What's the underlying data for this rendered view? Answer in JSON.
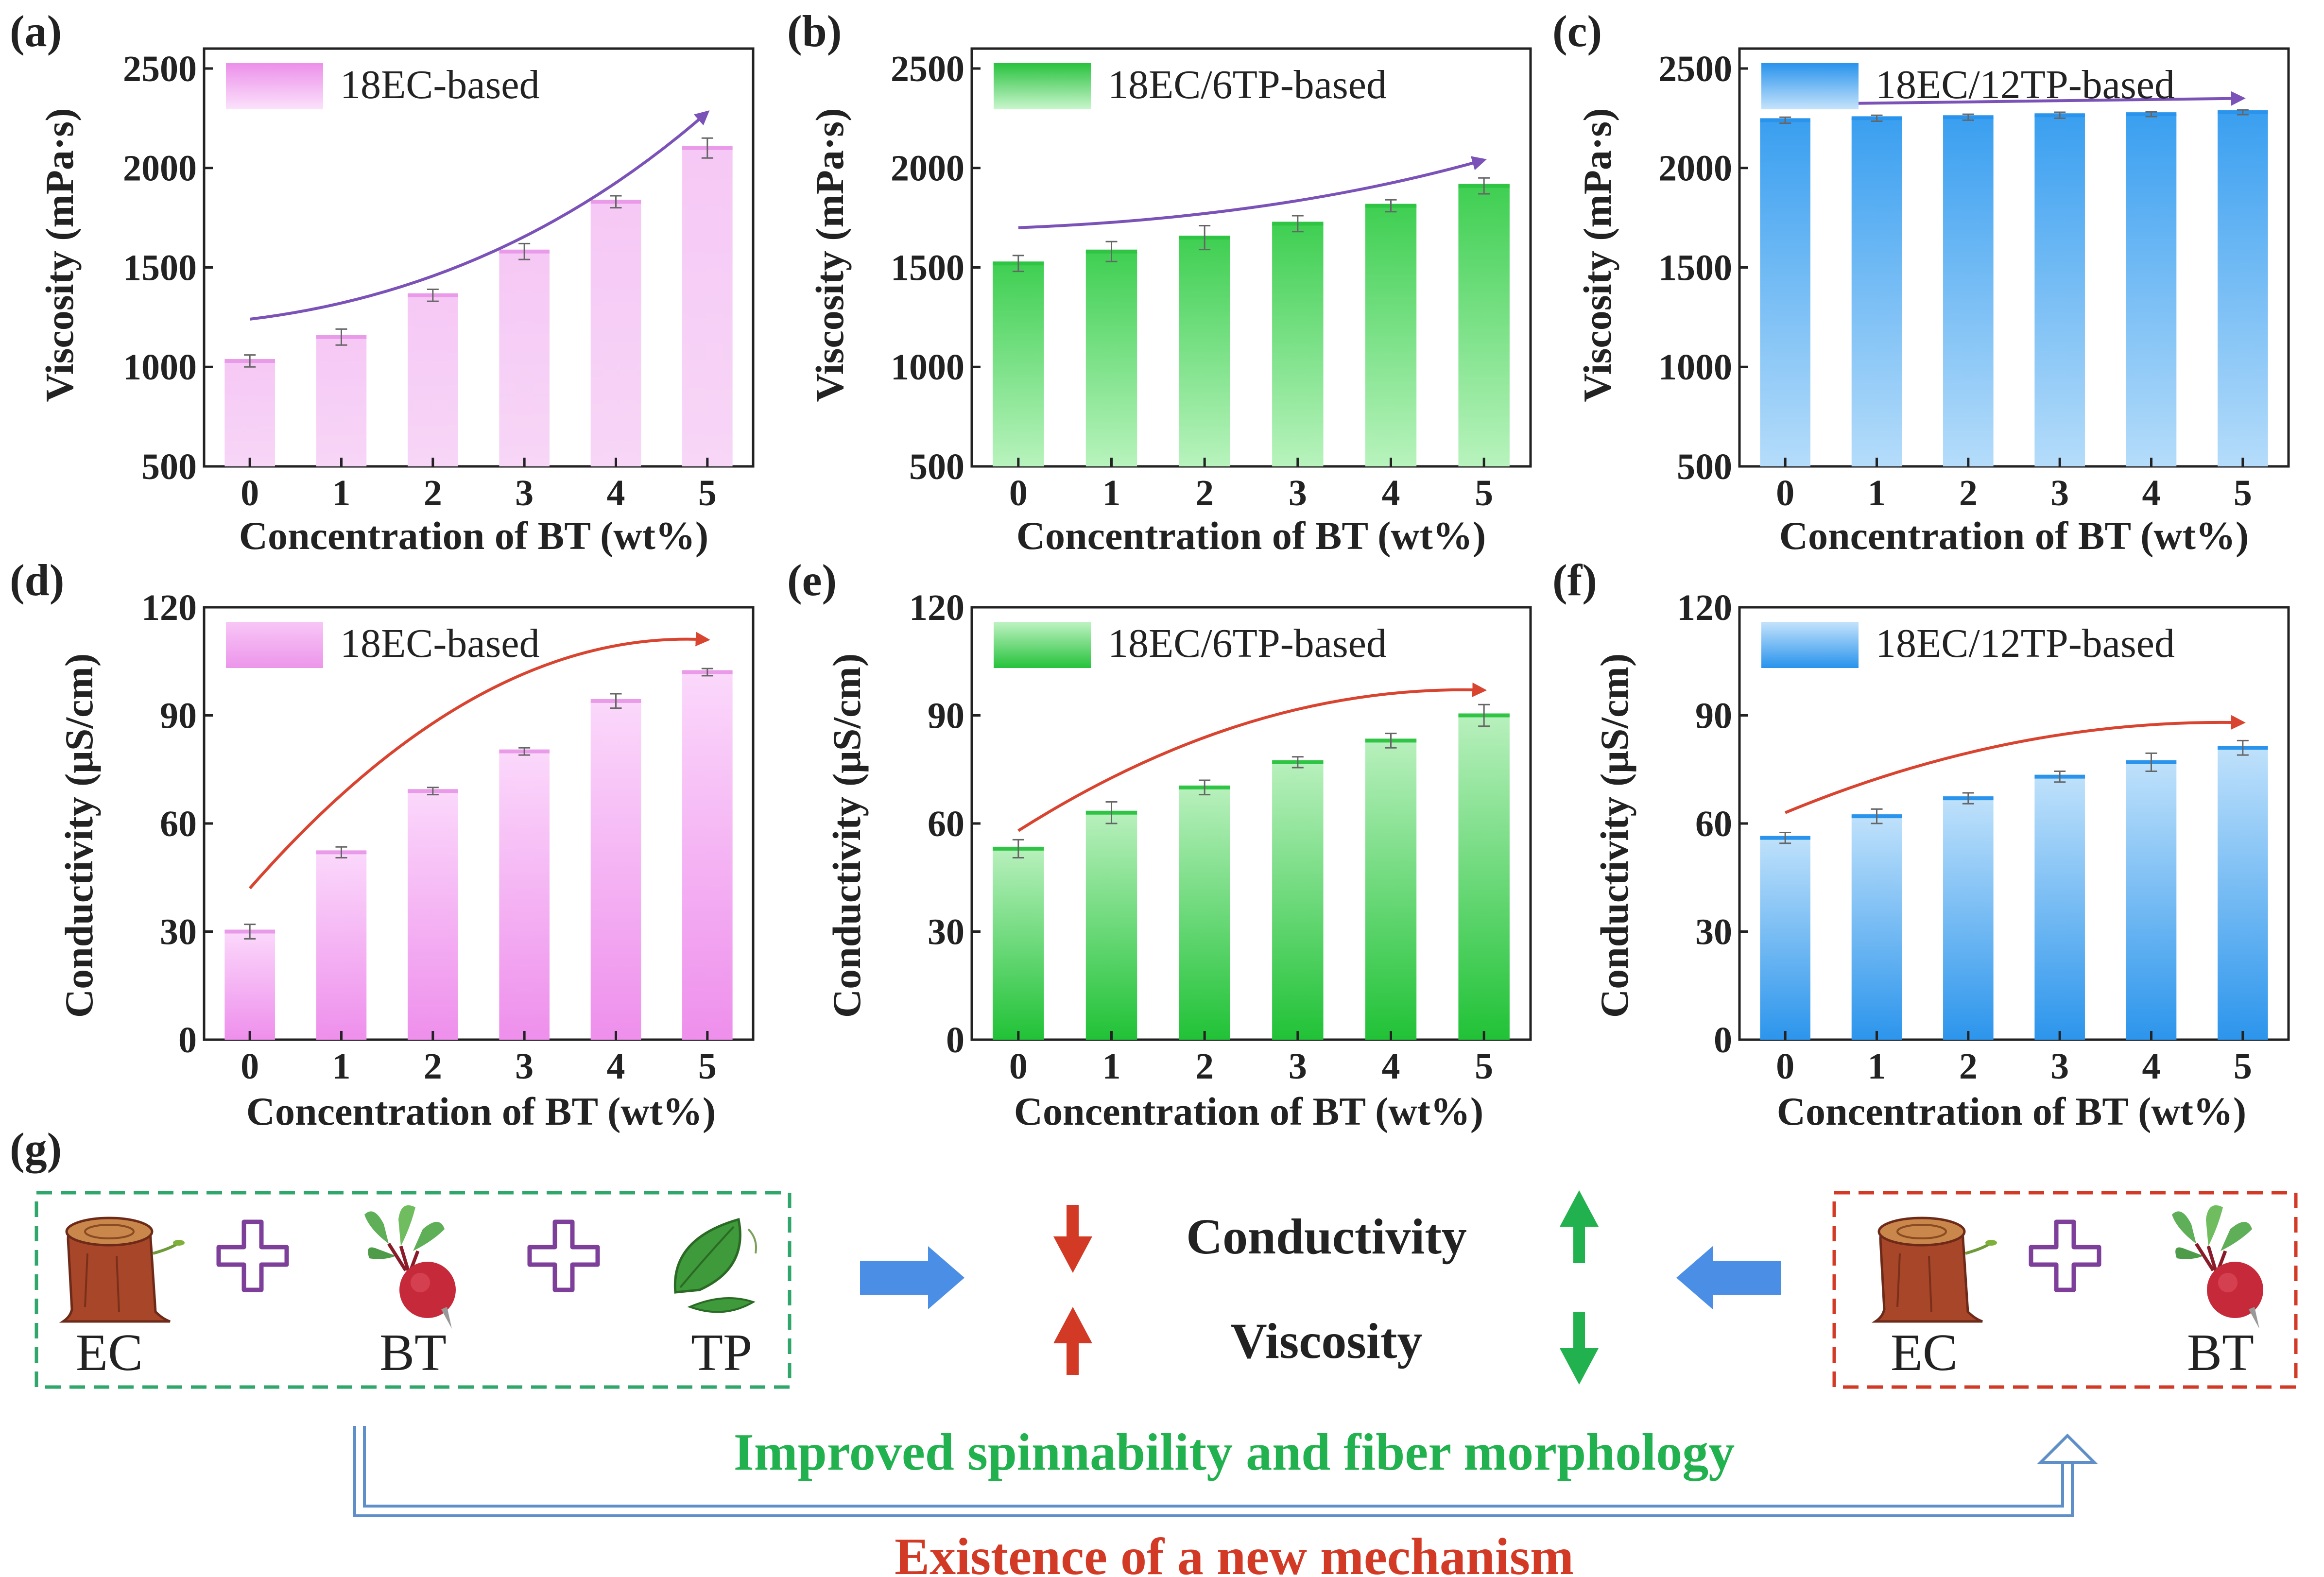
{
  "chart_data": [
    {
      "panel": "(a)",
      "type": "bar",
      "categories": [
        "0",
        "1",
        "2",
        "3",
        "4",
        "5"
      ],
      "series": [
        {
          "name": "18EC-based",
          "values": [
            1030,
            1150,
            1360,
            1580,
            1830,
            2100
          ],
          "errors": [
            30,
            40,
            30,
            40,
            30,
            50
          ]
        }
      ],
      "xlabel": "Concentration of BT (wt%)",
      "ylabel": "Viscosity (mPa·s)",
      "ylim": [
        500,
        2600
      ],
      "yticks": [
        "500",
        "1000",
        "1500",
        "2000",
        "2500"
      ],
      "trend_from": 1240,
      "trend_to": 2280,
      "colors": {
        "top": "#f6c8f5",
        "bottom": "#f7d6f7",
        "accent": "#e99ae8",
        "legend_top": "#ec8fea",
        "legend_bottom": "#fbe2fb",
        "trend": "#7b52b8"
      }
    },
    {
      "panel": "(b)",
      "type": "bar",
      "categories": [
        "0",
        "1",
        "2",
        "3",
        "4",
        "5"
      ],
      "series": [
        {
          "name": "18EC/6TP-based",
          "values": [
            1520,
            1580,
            1650,
            1720,
            1810,
            1910
          ],
          "errors": [
            40,
            50,
            60,
            40,
            30,
            40
          ]
        }
      ],
      "xlabel": "Concentration of BT (wt%)",
      "ylabel": "Viscosity (mPa·s)",
      "ylim": [
        500,
        2600
      ],
      "yticks": [
        "500",
        "1000",
        "1500",
        "2000",
        "2500"
      ],
      "trend_from": 1700,
      "trend_to": 2040,
      "colors": {
        "top": "#3fcf52",
        "bottom": "#b8f3bd",
        "accent": "#2fc444",
        "legend_top": "#28c23e",
        "legend_bottom": "#c9f6cd",
        "trend": "#7b52b8"
      }
    },
    {
      "panel": "(c)",
      "type": "bar",
      "categories": [
        "0",
        "1",
        "2",
        "3",
        "4",
        "5"
      ],
      "series": [
        {
          "name": "18EC/12TP-based",
          "values": [
            2240,
            2250,
            2255,
            2265,
            2270,
            2280
          ],
          "errors": [
            15,
            15,
            15,
            15,
            12,
            12
          ]
        }
      ],
      "xlabel": "Concentration of BT (wt%)",
      "ylabel": "Viscosity (mPa·s)",
      "ylim": [
        500,
        2600
      ],
      "yticks": [
        "500",
        "1000",
        "1500",
        "2000",
        "2500"
      ],
      "trend_from": 2320,
      "trend_to": 2350,
      "colors": {
        "top": "#3a9ff0",
        "bottom": "#b5dcfa",
        "accent": "#2a93ec",
        "legend_top": "#2893ec",
        "legend_bottom": "#c4e3fb",
        "trend": "#7b52b8"
      }
    },
    {
      "panel": "(d)",
      "type": "bar",
      "categories": [
        "0",
        "1",
        "2",
        "3",
        "4",
        "5"
      ],
      "series": [
        {
          "name": "18EC-based",
          "values": [
            30,
            52,
            69,
            80,
            94,
            102
          ],
          "errors": [
            2,
            1.5,
            1,
            1,
            2,
            1
          ]
        }
      ],
      "xlabel": "Concentration of BT (wt%)",
      "ylabel": "Conductivity (μS/cm)",
      "ylim": [
        0,
        120
      ],
      "yticks": [
        "0",
        "30",
        "60",
        "90",
        "120"
      ],
      "trend_from": 42,
      "trend_to": 111,
      "colors": {
        "top": "#fbd8fb",
        "bottom": "#ee8fec",
        "accent": "#e99ae8",
        "legend_top": "#f8c6f7",
        "legend_bottom": "#ec95ea",
        "trend": "#d94430"
      }
    },
    {
      "panel": "(e)",
      "type": "bar",
      "categories": [
        "0",
        "1",
        "2",
        "3",
        "4",
        "5"
      ],
      "series": [
        {
          "name": "18EC/6TP-based",
          "values": [
            53,
            63,
            70,
            77,
            83,
            90
          ],
          "errors": [
            2.5,
            3,
            2,
            1.5,
            2,
            3
          ]
        }
      ],
      "xlabel": "Concentration of BT (wt%)",
      "ylabel": "Conductivity (μS/cm)",
      "ylim": [
        0,
        120
      ],
      "yticks": [
        "0",
        "30",
        "60",
        "90",
        "120"
      ],
      "trend_from": 58,
      "trend_to": 97,
      "colors": {
        "top": "#b8f0bd",
        "bottom": "#21c237",
        "accent": "#2fc444",
        "legend_top": "#bff3c3",
        "legend_bottom": "#25c23b",
        "trend": "#d94430"
      }
    },
    {
      "panel": "(f)",
      "type": "bar",
      "categories": [
        "0",
        "1",
        "2",
        "3",
        "4",
        "5"
      ],
      "series": [
        {
          "name": "18EC/12TP-based",
          "values": [
            56,
            62,
            67,
            73,
            77,
            81
          ],
          "errors": [
            1.5,
            2,
            1.5,
            1.5,
            2.5,
            2
          ]
        }
      ],
      "xlabel": "Concentration of BT (wt%)",
      "ylabel": "Conductivity (μS/cm)",
      "ylim": [
        0,
        120
      ],
      "yticks": [
        "0",
        "30",
        "60",
        "90",
        "120"
      ],
      "trend_from": 63,
      "trend_to": 88,
      "colors": {
        "top": "#bfe1fb",
        "bottom": "#2c95ec",
        "accent": "#2a93ec",
        "legend_top": "#c4e3fb",
        "legend_bottom": "#2893ec",
        "trend": "#d94430"
      }
    }
  ],
  "diagram": {
    "panel": "(g)",
    "left_labels": [
      "EC",
      "BT",
      "TP"
    ],
    "right_labels": [
      "EC",
      "BT"
    ],
    "conductivity_label": "Conductivity",
    "viscosity_label": "Viscosity",
    "improved_text": "Improved spinnability and fiber morphology",
    "mechanism_text": "Existence of a new mechanism",
    "colors": {
      "green": "#21b14e",
      "red": "#d23a26",
      "purple": "#7d3f9a",
      "blue_arrow": "#4a8ee6",
      "connector": "#5e8fc8",
      "green_box": "#2fa66a",
      "red_box": "#d23a26"
    }
  }
}
